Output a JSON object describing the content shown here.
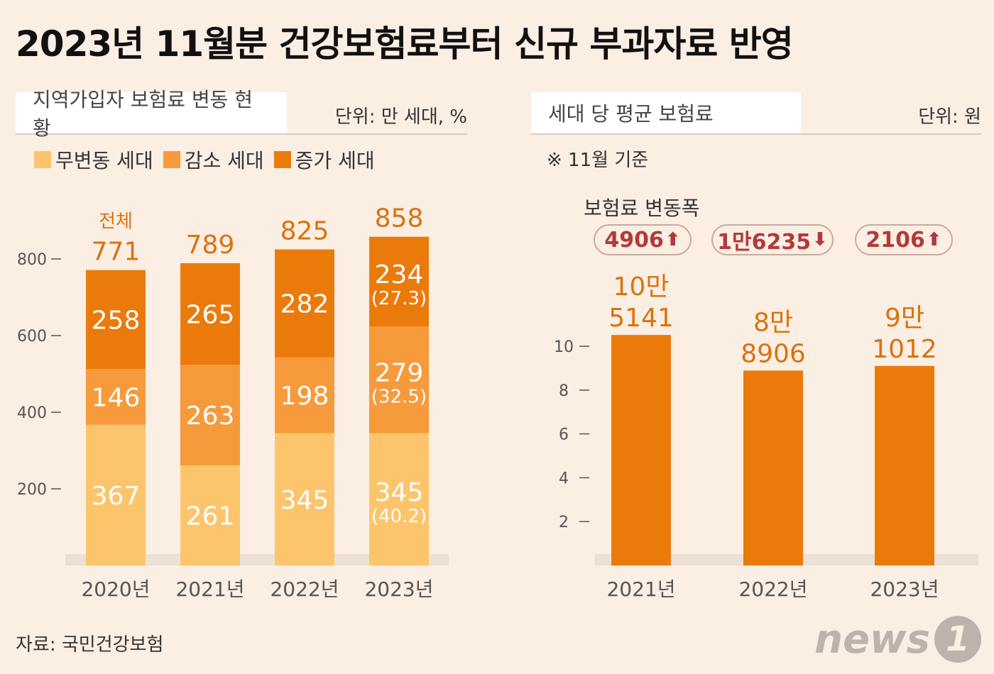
{
  "title": "2023년 11월분 건강보험료부터 신규 부과자료 반영",
  "left_panel": {
    "heading": "지역가입자 보험료 변동 현황",
    "unit": "단위: 만 세대, %",
    "legend": [
      {
        "label": "무변동 세대",
        "color": "#fdc56b"
      },
      {
        "label": "감소 세대",
        "color": "#f79a3b"
      },
      {
        "label": "증가 세대",
        "color": "#ea7b0b"
      }
    ],
    "total_prefix": "전체"
  },
  "right_panel": {
    "heading": "세대 당 평균 보험료",
    "unit": "단위: 원",
    "note": "※ 11월 기준",
    "change_title": "보험료 변동폭",
    "changes": [
      {
        "text": "4906",
        "direction": "up"
      },
      {
        "text": "1만6235",
        "direction": "down"
      },
      {
        "text": "2106",
        "direction": "up"
      }
    ]
  },
  "source": "자료: 국민건강보험",
  "logo": {
    "text": "news",
    "mark": "1"
  },
  "chart_data": [
    {
      "type": "bar",
      "stacked": true,
      "categories": [
        "2020년",
        "2021년",
        "2022년",
        "2023년"
      ],
      "series": [
        {
          "name": "무변동 세대",
          "values": [
            367,
            261,
            345,
            345
          ],
          "pct": [
            null,
            null,
            null,
            "(40.2)"
          ],
          "color": "#fdc56b"
        },
        {
          "name": "감소 세대",
          "values": [
            146,
            263,
            198,
            279
          ],
          "pct": [
            null,
            null,
            null,
            "(32.5)"
          ],
          "color": "#f79a3b"
        },
        {
          "name": "증가 세대",
          "values": [
            258,
            265,
            282,
            234
          ],
          "pct": [
            null,
            null,
            null,
            "(27.3)"
          ],
          "color": "#ea7b0b"
        }
      ],
      "totals": [
        "771",
        "789",
        "825",
        "858"
      ],
      "yticks": [
        200,
        400,
        600,
        800
      ],
      "ylim": [
        0,
        880
      ]
    },
    {
      "type": "bar",
      "categories": [
        "2021년",
        "2022년",
        "2023년"
      ],
      "values": [
        10.5141,
        8.8906,
        9.1012
      ],
      "value_labels": [
        [
          "10만",
          "5141"
        ],
        [
          "8만",
          "8906"
        ],
        [
          "9만",
          "1012"
        ]
      ],
      "yticks": [
        2,
        4,
        6,
        8,
        10
      ],
      "ylim": [
        0,
        12
      ],
      "color": "#ea7b0b"
    }
  ]
}
